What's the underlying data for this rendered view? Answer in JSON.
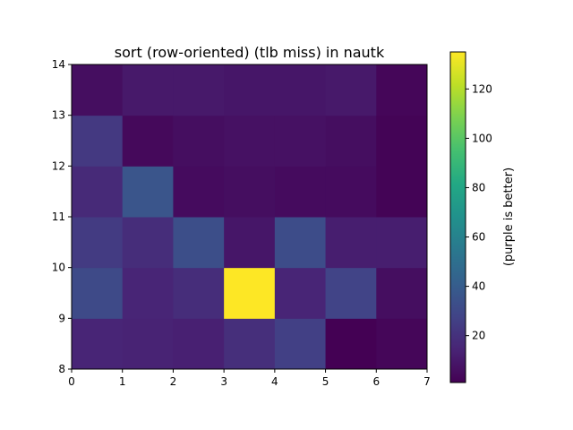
{
  "chart_data": {
    "type": "heatmap",
    "title": "sort (row-oriented) (tlb miss) in nautk",
    "xlabel": "",
    "ylabel": "",
    "xlim": [
      0,
      7
    ],
    "ylim": [
      8,
      14
    ],
    "x_ticks": [
      "0",
      "1",
      "2",
      "3",
      "4",
      "5",
      "6",
      "7"
    ],
    "y_ticks": [
      "8",
      "9",
      "10",
      "11",
      "12",
      "13",
      "14"
    ],
    "grid": false,
    "colormap": "viridis",
    "colorbar": {
      "label": "(purple is better)",
      "range": [
        1,
        135
      ],
      "ticks": [
        20,
        40,
        60,
        80,
        100,
        120
      ],
      "tick_labels": [
        "20",
        "40",
        "60",
        "80",
        "100",
        "120"
      ]
    },
    "x_edges": [
      0,
      1,
      2,
      3,
      4,
      5,
      6,
      7
    ],
    "y_edges": [
      8,
      9,
      10,
      11,
      12,
      13,
      14
    ],
    "values": [
      [
        15,
        14,
        13,
        19,
        26,
        1,
        3
      ],
      [
        31,
        15,
        18,
        135,
        15,
        28,
        6
      ],
      [
        24,
        18,
        33,
        9,
        32,
        12,
        12
      ],
      [
        17,
        36,
        5,
        6,
        5,
        5,
        2
      ],
      [
        23,
        4,
        6,
        7,
        7,
        6,
        2
      ],
      [
        6,
        10,
        10,
        9,
        9,
        10,
        3
      ]
    ]
  }
}
